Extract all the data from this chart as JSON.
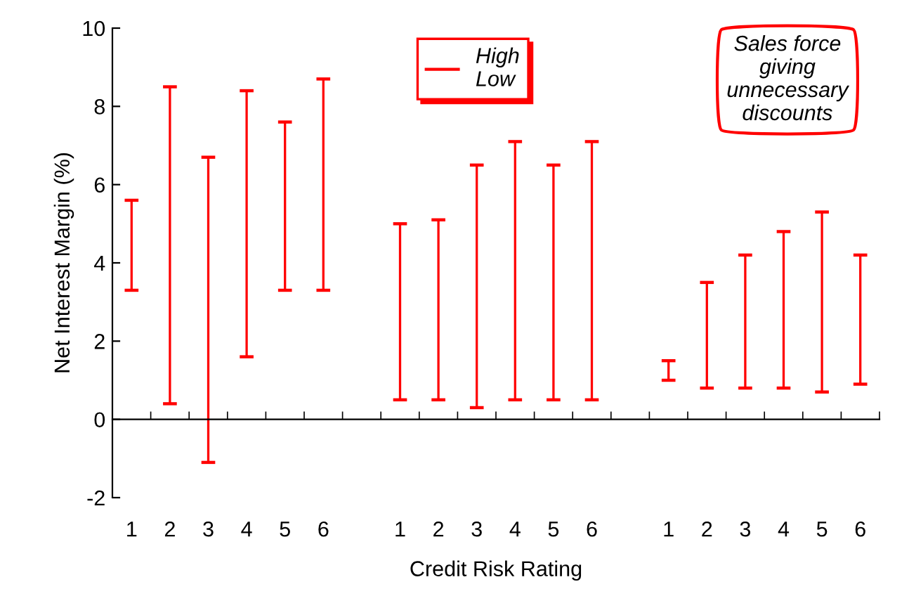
{
  "chart_data": {
    "type": "bar",
    "xlabel": "Credit Risk Rating",
    "ylabel": "Net Interest Margin (%)",
    "categories": [
      "1",
      "2",
      "3",
      "4",
      "5",
      "6",
      null,
      "1",
      "2",
      "3",
      "4",
      "5",
      "6",
      null,
      "1",
      "2",
      "3",
      "4",
      "5",
      "6"
    ],
    "series": [
      {
        "name": "High\nLow",
        "color": "#ff0000",
        "base": [
          3.3,
          0.4,
          -1.1,
          1.6,
          3.3,
          3.3,
          null,
          0.5,
          0.5,
          0.3,
          0.5,
          0.5,
          0.5,
          null,
          1.0,
          0.8,
          0.8,
          0.8,
          0.7,
          0.9
        ],
        "values": [
          2.3,
          8.1,
          7.8,
          6.8,
          4.3,
          5.4,
          null,
          4.5,
          4.6,
          6.2,
          6.6,
          6.0,
          6.6,
          null,
          0.5,
          2.7,
          3.4,
          4.0,
          4.6,
          3.3
        ]
      }
    ],
    "ylim": [
      -2,
      10
    ],
    "yticks": [
      -2,
      0,
      2,
      4,
      6,
      8,
      10
    ],
    "legend": "top",
    "annotations": [
      "Sales force\ngiving\nunnecessary\ndiscounts"
    ]
  }
}
